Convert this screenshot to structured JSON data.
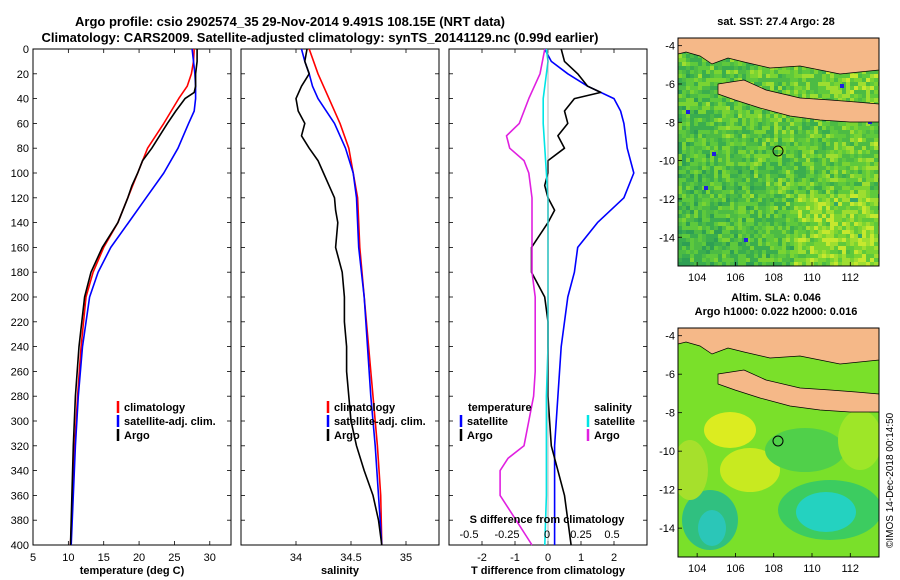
{
  "header": {
    "line1": "Argo profile: csio 2902574_35 29-Nov-2014 9.491S 108.15E (NRT data)",
    "line2": "Climatology: CARS2009. Satellite-adjusted climatology: synTS_20141129.nc (0.99d earlier)"
  },
  "colors": {
    "climatology": "#ff0000",
    "satellite": "#0000ff",
    "argo": "#000000",
    "sal_sat": "#00e5e5",
    "sal_argo": "#e020e0",
    "land": "#f5b888"
  },
  "chart_data": [
    {
      "type": "line",
      "id": "temperature",
      "xlabel": "temperature (deg C)",
      "ylabel": "",
      "xlim": [
        5,
        33
      ],
      "ylim": [
        400,
        0
      ],
      "xticks": [
        5,
        10,
        15,
        20,
        25,
        30
      ],
      "yticks": [
        0,
        20,
        40,
        60,
        80,
        100,
        120,
        140,
        160,
        180,
        200,
        220,
        240,
        260,
        280,
        300,
        320,
        340,
        360,
        380,
        400
      ],
      "legend": [
        "climatology",
        "satellite-adj. clim.",
        "Argo"
      ],
      "series": [
        {
          "name": "climatology",
          "color": "#ff0000",
          "depth": [
            0,
            10,
            20,
            30,
            40,
            60,
            80,
            100,
            120,
            140,
            160,
            180,
            200,
            240,
            280,
            320,
            360,
            400
          ],
          "values": [
            27.8,
            27.7,
            27.4,
            26.8,
            25.6,
            23.5,
            21.2,
            19.8,
            18.4,
            17.0,
            15.0,
            13.5,
            12.5,
            11.8,
            11.3,
            10.9,
            10.6,
            10.3
          ]
        },
        {
          "name": "satellite-adj. clim.",
          "color": "#0000ff",
          "depth": [
            0,
            10,
            20,
            30,
            40,
            50,
            60,
            80,
            100,
            120,
            140,
            160,
            180,
            200,
            240,
            280,
            320,
            360,
            400
          ],
          "values": [
            27.5,
            27.7,
            27.9,
            28.0,
            28.0,
            27.8,
            27.0,
            25.5,
            23.5,
            21.0,
            18.5,
            16.0,
            14.2,
            13.0,
            12.0,
            11.4,
            11.0,
            10.7,
            10.4
          ]
        },
        {
          "name": "Argo",
          "color": "#000000",
          "depth": [
            0,
            10,
            20,
            30,
            35,
            40,
            50,
            60,
            80,
            90,
            100,
            110,
            120,
            140,
            160,
            180,
            200,
            240,
            280,
            320,
            360,
            400
          ],
          "values": [
            28.2,
            28.2,
            28.0,
            28.0,
            27.8,
            26.5,
            25.2,
            24.0,
            21.8,
            20.5,
            19.8,
            19.0,
            18.4,
            17.0,
            14.8,
            13.2,
            12.3,
            11.5,
            11.0,
            10.7,
            10.5,
            10.3
          ]
        }
      ]
    },
    {
      "type": "line",
      "id": "salinity",
      "xlabel": "salinity",
      "xlim": [
        33.5,
        35.3
      ],
      "ylim": [
        400,
        0
      ],
      "xticks": [
        34,
        34.5,
        35
      ],
      "legend": [
        "climatology",
        "satellite-adj. clim.",
        "Argo"
      ],
      "series": [
        {
          "name": "climatology",
          "color": "#ff0000",
          "depth": [
            0,
            20,
            40,
            60,
            80,
            100,
            120,
            160,
            200,
            240,
            280,
            320,
            360,
            400
          ],
          "values": [
            34.12,
            34.2,
            34.3,
            34.4,
            34.48,
            34.52,
            34.56,
            34.58,
            34.62,
            34.66,
            34.7,
            34.74,
            34.77,
            34.78
          ]
        },
        {
          "name": "satellite-adj. clim.",
          "color": "#0000ff",
          "depth": [
            0,
            10,
            20,
            30,
            40,
            60,
            80,
            100,
            120,
            140,
            160,
            200,
            240,
            280,
            320,
            360,
            400
          ],
          "values": [
            34.05,
            34.08,
            34.12,
            34.15,
            34.2,
            34.35,
            34.45,
            34.52,
            34.55,
            34.56,
            34.57,
            34.62,
            34.65,
            34.68,
            34.72,
            34.75,
            34.78
          ]
        },
        {
          "name": "Argo",
          "color": "#000000",
          "depth": [
            0,
            10,
            20,
            30,
            40,
            50,
            60,
            70,
            80,
            90,
            100,
            110,
            120,
            130,
            140,
            160,
            180,
            200,
            220,
            240,
            260,
            280,
            300,
            320,
            340,
            360,
            380,
            400
          ],
          "values": [
            34.1,
            34.08,
            34.12,
            34.05,
            34.0,
            34.02,
            34.08,
            34.05,
            34.12,
            34.2,
            34.25,
            34.3,
            34.35,
            34.36,
            34.38,
            34.36,
            34.42,
            34.44,
            34.44,
            34.46,
            34.46,
            34.48,
            34.5,
            34.55,
            34.62,
            34.7,
            34.75,
            34.78
          ]
        }
      ]
    },
    {
      "type": "line",
      "id": "difference",
      "xlabel": "T difference from climatology",
      "xlabel_top": "S difference from climatology",
      "xlim": [
        -3,
        3
      ],
      "ylim": [
        400,
        0
      ],
      "xticks": [
        -2,
        -1,
        0,
        1,
        2
      ],
      "xticks_top": [
        "-0.5",
        "-0.25",
        "0",
        "0.25",
        "0.5"
      ],
      "legend_titles": [
        "temperature",
        "salinity"
      ],
      "legend": [
        "satellite",
        "Argo",
        "satellite",
        "Argo"
      ],
      "series": [
        {
          "name": "T satellite",
          "color": "#0000ff",
          "depth": [
            0,
            10,
            20,
            30,
            40,
            50,
            60,
            80,
            100,
            120,
            140,
            160,
            180,
            200,
            240,
            280,
            320,
            360,
            400
          ],
          "values": [
            -0.1,
            0.1,
            0.6,
            1.2,
            2.0,
            2.2,
            2.3,
            2.4,
            2.6,
            2.3,
            1.5,
            0.9,
            0.8,
            0.6,
            0.4,
            0.3,
            0.2,
            0.2,
            0.2
          ]
        },
        {
          "name": "T Argo",
          "color": "#000000",
          "depth": [
            0,
            10,
            20,
            30,
            35,
            40,
            50,
            60,
            70,
            80,
            90,
            100,
            110,
            120,
            130,
            140,
            160,
            180,
            200,
            220,
            240,
            260,
            280,
            300,
            320,
            340,
            360,
            380,
            400
          ],
          "values": [
            0.4,
            0.5,
            0.9,
            1.2,
            1.6,
            0.8,
            0.5,
            0.6,
            0.3,
            0.5,
            0.0,
            0.0,
            -0.1,
            0.0,
            0.2,
            0.0,
            -0.5,
            -0.5,
            -0.1,
            0.0,
            0.0,
            0.0,
            0.0,
            0.05,
            0.1,
            0.3,
            0.5,
            0.6,
            0.7
          ]
        },
        {
          "name": "S satellite",
          "color": "#00e5e5",
          "depth": [
            0,
            10,
            20,
            40,
            60,
            80,
            100,
            120,
            140,
            160,
            200,
            240,
            280,
            320,
            360,
            400
          ],
          "values": [
            -0.01,
            0.0,
            -0.01,
            -0.03,
            -0.03,
            -0.02,
            -0.01,
            0.0,
            0.0,
            0.0,
            0.0,
            0.0,
            -0.01,
            -0.01,
            -0.01,
            -0.02
          ]
        },
        {
          "name": "S Argo",
          "color": "#e020e0",
          "depth": [
            0,
            20,
            40,
            60,
            70,
            80,
            90,
            100,
            120,
            140,
            160,
            180,
            200,
            220,
            240,
            260,
            280,
            300,
            320,
            330,
            340,
            360,
            380,
            400
          ],
          "values": [
            -0.02,
            -0.05,
            -0.12,
            -0.18,
            -0.26,
            -0.24,
            -0.15,
            -0.12,
            -0.1,
            -0.1,
            -0.1,
            -0.1,
            -0.08,
            -0.08,
            -0.08,
            -0.08,
            -0.09,
            -0.12,
            -0.15,
            -0.25,
            -0.3,
            -0.3,
            -0.2,
            -0.1
          ]
        }
      ]
    },
    {
      "type": "heatmap",
      "id": "sst_map",
      "title": "sat. SST: 27.4 Argo: 28",
      "xlim": [
        103,
        113.5
      ],
      "ylim": [
        -15.5,
        -3.6
      ],
      "xticks": [
        104,
        106,
        108,
        110,
        112
      ],
      "yticks": [
        -4,
        -6,
        -8,
        -10,
        -12,
        -14
      ],
      "marker": {
        "lon": 108.15,
        "lat": -9.491
      }
    },
    {
      "type": "heatmap",
      "id": "sla_map",
      "title": "Altim. SLA: 0.046",
      "subtitle": "Argo h1000: 0.022 h2000: 0.016",
      "xlim": [
        103,
        113.5
      ],
      "ylim": [
        -15.5,
        -3.6
      ],
      "xticks": [
        104,
        106,
        108,
        110,
        112
      ],
      "yticks": [
        -4,
        -6,
        -8,
        -10,
        -12,
        -14
      ],
      "marker": {
        "lon": 108.15,
        "lat": -9.491
      }
    }
  ],
  "footer": {
    "stamp": "©IMOS 14-Dec-2018 00:14:50"
  }
}
